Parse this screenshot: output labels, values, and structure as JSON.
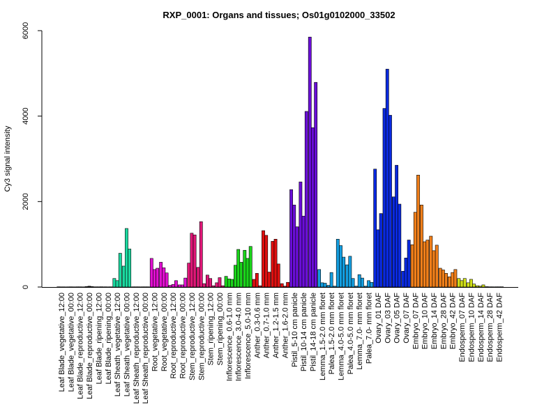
{
  "chart_data": {
    "type": "bar",
    "title": "RXP_0001: Organs and tissues; Os01g0102000_33502",
    "xlabel": "",
    "ylabel": "Cy3 signal intensity",
    "ylim": [
      0,
      6000
    ],
    "yticks": [
      0,
      2000,
      4000,
      6000
    ],
    "grid": false,
    "categories": [
      "Leaf Blade_vegetative_12:00",
      "Leaf Blade_vegetative_00:00",
      "Leaf Blade_reproductive_12:00",
      "Leaf Blade_reproductive_00:00",
      "Leaf Blade_ripening_12:00",
      "Leaf Blade_ripening_00:00",
      "Leaf Sheath_vegetative_12:00",
      "Leaf Sheath_vegetative_00:00",
      "Leaf Sheath_reproductive_12:00",
      "Leaf Sheath_reproductive_00:00",
      "Root_vegetative_12:00",
      "Root_vegetative_00:00",
      "Root_reproductive_12:00",
      "Root_reproductive_00:00",
      "Stem_reproductive_12:00",
      "Stem_reproductive_00:00",
      "Stem_ripening_12:00",
      "Stem_ripening_00:00",
      "Inflorescence_0.6-1.0 mm",
      "Inflorescence_3.0-4.0 mm",
      "Inflorescence_5.0-10 mm",
      "Anther_0.3-0.6 mm",
      "Anther_0.7-1.0 mm",
      "Anther_1.2-1.5 mm",
      "Anther_1.6-2.0 mm",
      "Pistil_5-10 cm panicle",
      "Pistil_10-14 cm panicle",
      "Pistil_14-18 cm panicle",
      "Lemma_1.5-2.0 mm floret",
      "Palea_1.5-2.0 mm floret",
      "Lemma_4.0-5.0 mm floret",
      "Palea_4.0-5.0 mm floret",
      "Lemma_7.0- mm floret",
      "Palea_7.0- mm floret",
      "Ovary_01 DAF",
      "Ovary_03 DAF",
      "Ovary_05 DAF",
      "Ovary_07 DAF",
      "Embryo_07 DAF",
      "Embryo_10 DAF",
      "Embryo_14 DAF",
      "Embryo_28 DAF",
      "Embryo_42 DAF",
      "Endosperm_07 DAF",
      "Endosperm_10 DAF",
      "Endosperm_14 DAF",
      "Endosperm_28 DAF",
      "Endosperm_42 DAF"
    ],
    "series": [
      {
        "color": "#000000",
        "values": [
          [
            5,
            4,
            4
          ],
          [
            4,
            5,
            4
          ],
          [
            5,
            5,
            4
          ],
          [
            10,
            20,
            10
          ],
          [
            5,
            5,
            6
          ],
          [
            5,
            4,
            5
          ],
          [
            200,
            150,
            790
          ],
          [
            490,
            1370,
            890
          ],
          [
            5,
            5,
            5
          ],
          [
            5,
            5,
            5
          ],
          [
            670,
            410,
            440
          ],
          [
            580,
            450,
            330
          ],
          [
            40,
            60,
            150
          ],
          [
            50,
            50,
            210
          ],
          [
            560,
            1260,
            1220
          ],
          [
            460,
            1530,
            80
          ],
          [
            280,
            200,
            30
          ],
          [
            100,
            220,
            30
          ],
          [
            250,
            190,
            180
          ],
          [
            510,
            880,
            580
          ],
          [
            860,
            670,
            950
          ],
          [
            180,
            320,
            30
          ],
          [
            1320,
            1210,
            350
          ],
          [
            1070,
            1120,
            540
          ],
          [
            80,
            20,
            110
          ],
          [
            2280,
            1920,
            1410
          ],
          [
            2460,
            1660,
            4110
          ],
          [
            5850,
            3730,
            4790
          ],
          [
            410,
            100,
            90
          ],
          [
            40,
            340,
            20
          ],
          [
            1120,
            970,
            700
          ],
          [
            520,
            720,
            200
          ],
          [
            20,
            290,
            210
          ],
          [
            20,
            150,
            110
          ],
          [
            2760,
            1340,
            1720
          ],
          [
            4180,
            5100,
            4020
          ],
          [
            2110,
            2850,
            1940
          ],
          [
            370,
            680,
            1100
          ],
          [
            990,
            1750,
            2620
          ],
          [
            1920,
            1060,
            1100
          ],
          [
            1190,
            850,
            980
          ],
          [
            440,
            400,
            320
          ],
          [
            240,
            340,
            410
          ],
          [
            200,
            150,
            200
          ],
          [
            100,
            180,
            70
          ],
          [
            30,
            20,
            50
          ],
          [
            8,
            5,
            5
          ],
          [
            5,
            5,
            5
          ]
        ]
      }
    ],
    "colors": [
      "#222222",
      "#222222",
      "#222222",
      "#222222",
      "#222222",
      "#222222",
      "#1bd9a0",
      "#1bd9a0",
      "#222222",
      "#222222",
      "#e00fd0",
      "#e00fd0",
      "#e00fd0",
      "#e00fd0",
      "#e01878",
      "#e01878",
      "#e01878",
      "#e01878",
      "#1bd41b",
      "#1bd41b",
      "#1bd41b",
      "#e01010",
      "#e01010",
      "#e01010",
      "#e01010",
      "#6a0ed8",
      "#6a0ed8",
      "#6a0ed8",
      "#139ee0",
      "#139ee0",
      "#139ee0",
      "#139ee0",
      "#139ee0",
      "#139ee0",
      "#0a2ae0",
      "#0a2ae0",
      "#0a2ae0",
      "#0a2ae0",
      "#f07f1a",
      "#f07f1a",
      "#f07f1a",
      "#f07f1a",
      "#f07f1a",
      "#d0e018",
      "#d0e018",
      "#d0e018",
      "#d0e018",
      "#d0e018"
    ]
  }
}
